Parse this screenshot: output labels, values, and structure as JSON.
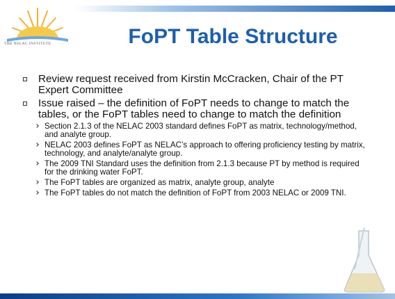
{
  "logo": {
    "text": "THE NELAC INSTITUTE"
  },
  "header": {
    "title": "FoPT Table Structure"
  },
  "bullets": [
    {
      "text": "Review request received from Kirstin McCracken, Chair of the PT Expert Committee",
      "subs": []
    },
    {
      "text": "Issue raised – the definition of FoPT needs to change to match the tables, or the FoPT tables need to change to match the definition",
      "subs": [
        "Section 2.1.3 of the NELAC 2003 standard defines FoPT as matrix, technology/method, and analyte group.",
        "NELAC 2003 defines FoPT as NELAC’s approach to offering proficiency testing by matrix, technology, and analyte/analyte group.",
        "The 2009 TNI Standard uses the definition from 2.1.3 because PT by method is required for the drinking water FoPT.",
        "The FoPT tables are organized as matrix, analyte group, analyte",
        "The FoPT tables do not match the definition of FoPT from 2003 NELAC or 2009 TNI."
      ]
    }
  ]
}
